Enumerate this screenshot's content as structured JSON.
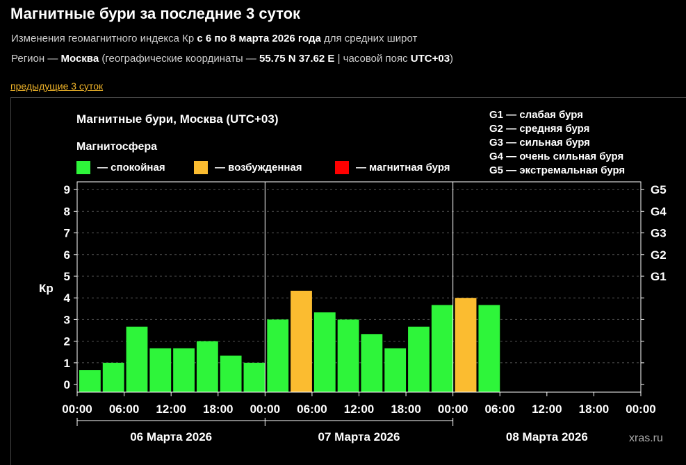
{
  "page": {
    "title": "Магнитные бури за последние 3 суток",
    "subtitle_pre": "Изменения геомагнитного индекса Кр ",
    "subtitle_range": "с 6 по 8 марта 2026 года",
    "subtitle_post": " для средних широт",
    "region_pre": "Регион — ",
    "region_city": "Москва",
    "region_mid": " (географические координаты — ",
    "region_coords": "55.75 N 37.62 E",
    "region_tz_pre": " | часовой пояс ",
    "region_tz": "UTC+03",
    "region_post": ")",
    "prev_link": "предыдущие 3 суток"
  },
  "chart_data": {
    "type": "bar",
    "title": "Магнитные бури, Москва (UTC+03)",
    "legend_title": "Магнитосфера",
    "legend": [
      {
        "label": "— спокойная",
        "color": "#2ef53a"
      },
      {
        "label": "— возбужденная",
        "color": "#fbbc30"
      },
      {
        "label": "— магнитная буря",
        "color": "#ff0000"
      }
    ],
    "storm_scale": [
      "G1 — слабая буря",
      "G2 — средняя буря",
      "G3 — сильная буря",
      "G4 — очень сильная буря",
      "G5 — экстремальная буря"
    ],
    "ylabel": "Кр",
    "ylim": [
      0,
      9
    ],
    "y_ticks": [
      "0",
      "1",
      "2",
      "3",
      "4",
      "5",
      "6",
      "7",
      "8",
      "9"
    ],
    "g_ticks": [
      {
        "label": "G1",
        "kp": 5
      },
      {
        "label": "G2",
        "kp": 6
      },
      {
        "label": "G3",
        "kp": 7
      },
      {
        "label": "G4",
        "kp": 8
      },
      {
        "label": "G5",
        "kp": 9
      }
    ],
    "x_ticks": [
      "00:00",
      "06:00",
      "12:00",
      "18:00",
      "00:00",
      "06:00",
      "12:00",
      "18:00",
      "00:00",
      "06:00",
      "12:00",
      "18:00",
      "00:00"
    ],
    "days": [
      "06 Марта 2026",
      "07 Марта 2026",
      "08 Марта 2026"
    ],
    "interval_hours": 3,
    "values": [
      0.67,
      1.0,
      2.67,
      1.67,
      1.67,
      2.0,
      1.33,
      1.0,
      3.0,
      4.33,
      3.33,
      3.0,
      2.33,
      1.67,
      2.67,
      3.67,
      4.0,
      3.67
    ],
    "levels": [
      "calm",
      "calm",
      "calm",
      "calm",
      "calm",
      "calm",
      "calm",
      "calm",
      "calm",
      "active",
      "calm",
      "calm",
      "calm",
      "calm",
      "calm",
      "calm",
      "active",
      "calm"
    ],
    "level_colors": {
      "calm": "#2ef53a",
      "active": "#fbbc30",
      "storm": "#ff0000"
    },
    "watermark": "xras.ru"
  }
}
